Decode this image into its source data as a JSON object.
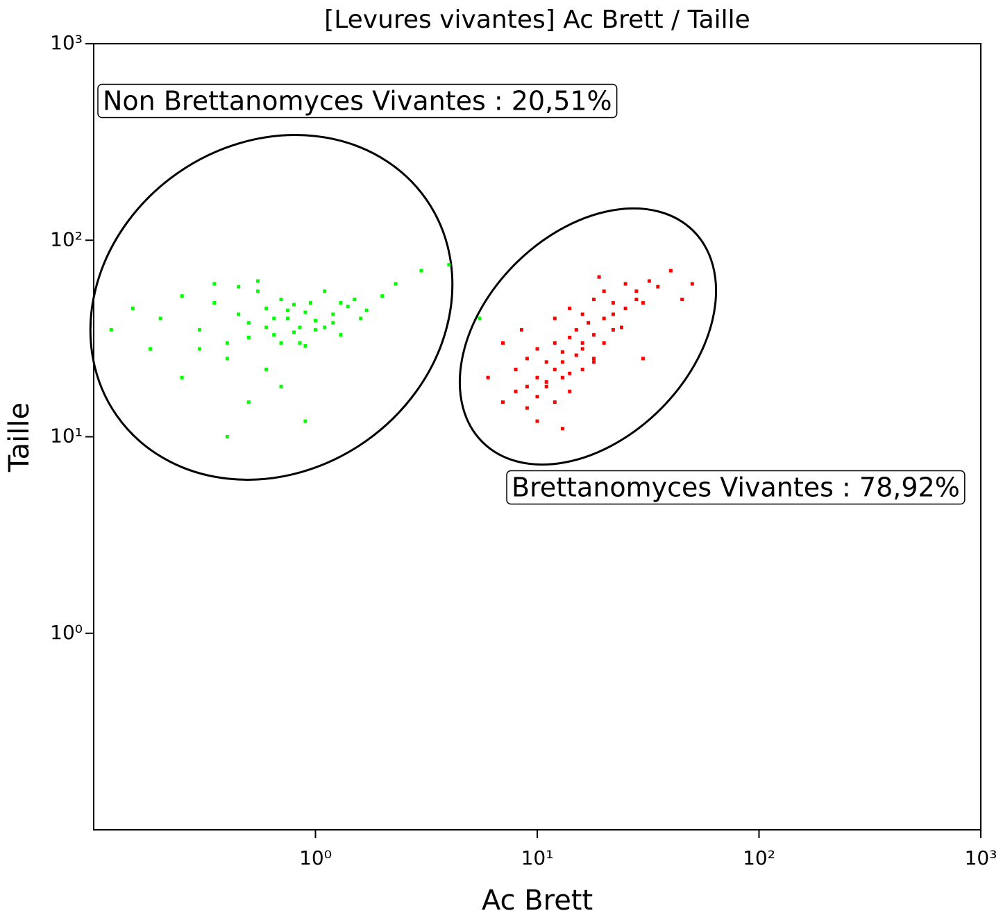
{
  "chart_data": {
    "type": "scatter",
    "title": "[Levures vivantes] Ac Brett / Taille",
    "x_label": "Ac Brett",
    "y_label": "Taille",
    "x_log": true,
    "y_log": true,
    "xlim": [
      0.1,
      1000
    ],
    "ylim": [
      0.1,
      1000
    ],
    "xticks": [
      {
        "value": 1,
        "label": "10⁰"
      },
      {
        "value": 10,
        "label": "10¹"
      },
      {
        "value": 100,
        "label": "10²"
      },
      {
        "value": 1000,
        "label": "10³"
      }
    ],
    "yticks": [
      {
        "value": 1,
        "label": "10⁰"
      },
      {
        "value": 10,
        "label": "10¹"
      },
      {
        "value": 100,
        "label": "10²"
      },
      {
        "value": 1000,
        "label": "10³"
      }
    ],
    "annotations": [
      "Non Brettanomyces Vivantes : 20,51%",
      "Brettanomyces Vivantes : 78,92%"
    ],
    "series": [
      {
        "color": "#00ff00",
        "x": [
          0.15,
          0.2,
          0.25,
          0.3,
          0.35,
          0.4,
          0.45,
          0.5,
          0.55,
          0.6,
          0.65,
          0.7,
          0.75,
          0.8,
          0.85,
          0.9,
          1,
          1.1,
          1.2,
          1.3,
          1.5,
          1.7,
          2,
          2.3,
          0.3,
          0.4,
          0.5,
          0.6,
          0.7,
          0.8,
          0.9,
          1,
          1.2,
          1.4,
          0.35,
          0.45,
          0.55,
          0.65,
          0.75,
          0.85,
          0.95,
          1.1,
          1.3,
          1.6,
          0.25,
          0.5,
          0.7,
          0.9,
          3,
          4,
          0.4,
          0.6,
          5.5,
          0.12,
          0.18
        ],
        "values": [
          45,
          40,
          52,
          35,
          48,
          30,
          42,
          38,
          55,
          45,
          33,
          50,
          40,
          47,
          36,
          43,
          39,
          55,
          42,
          48,
          50,
          44,
          52,
          60,
          28,
          25,
          32,
          36,
          30,
          34,
          29,
          35,
          38,
          46,
          60,
          58,
          62,
          40,
          44,
          30,
          48,
          36,
          33,
          40,
          20,
          15,
          18,
          12,
          70,
          75,
          10,
          22,
          40,
          35,
          28
        ]
      },
      {
        "color": "#ff0000",
        "x": [
          8,
          9,
          10,
          11,
          12,
          13,
          14,
          15,
          16,
          17,
          18,
          20,
          22,
          25,
          28,
          30,
          9,
          10,
          11,
          12,
          13,
          14,
          15,
          16,
          18,
          20,
          22,
          24,
          7,
          8,
          9,
          10,
          11,
          12,
          13,
          14,
          16,
          18,
          12,
          14,
          16,
          18,
          20,
          22,
          25,
          28,
          32,
          35,
          6,
          7,
          40,
          45,
          50,
          10,
          13,
          30,
          8.5,
          19
        ],
        "values": [
          22,
          25,
          28,
          24,
          30,
          27,
          32,
          35,
          30,
          38,
          33,
          40,
          42,
          45,
          50,
          48,
          18,
          20,
          19,
          22,
          24,
          21,
          26,
          28,
          25,
          30,
          35,
          36,
          15,
          17,
          14,
          16,
          18,
          15,
          20,
          17,
          22,
          24,
          40,
          45,
          42,
          50,
          55,
          48,
          60,
          55,
          62,
          58,
          20,
          30,
          70,
          50,
          60,
          12,
          11,
          25,
          35,
          65
        ]
      }
    ]
  }
}
